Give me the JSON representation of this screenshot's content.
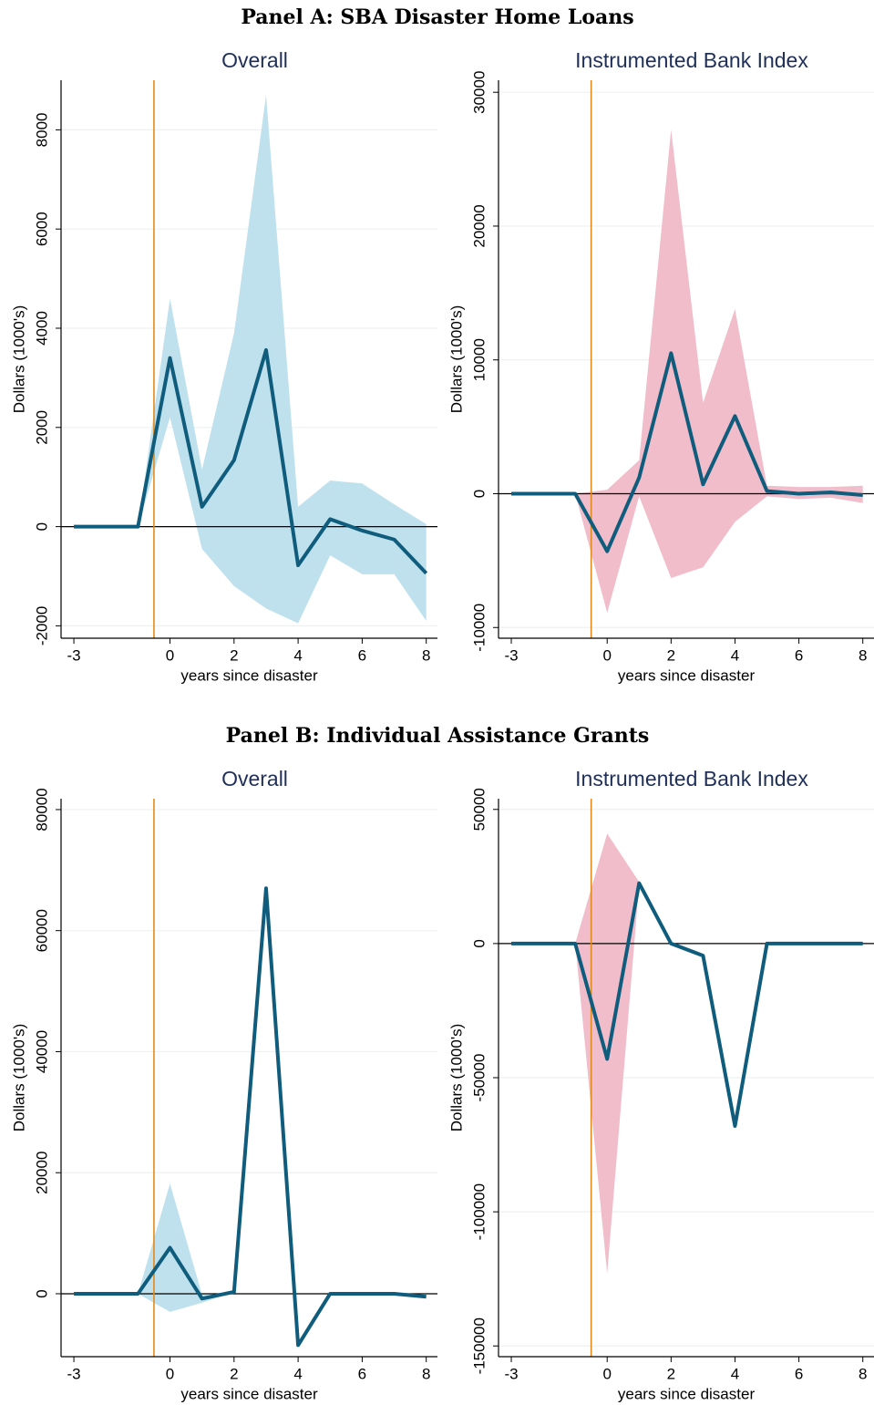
{
  "panel_titles": [
    "Panel A: SBA Disaster Home Loans",
    "Panel B: Individual Assistance Grants"
  ],
  "chart_data": [
    {
      "type": "line",
      "title": "Overall",
      "xlabel": "years since disaster",
      "ylabel": "Dollars (1000's)",
      "x": [
        -3,
        -2,
        -1,
        0,
        1,
        2,
        3,
        4,
        5,
        6,
        7,
        8
      ],
      "series": [
        {
          "color": "#0f5c7c",
          "values": [
            0,
            0,
            0,
            3400,
            400,
            1340,
            3560,
            -780,
            150,
            -80,
            -260,
            -940
          ]
        }
      ],
      "band": {
        "color": "#bfe1ed",
        "upper": [
          0,
          0,
          0,
          4600,
          1150,
          3900,
          8700,
          400,
          930,
          870,
          450,
          50
        ],
        "lower": [
          0,
          0,
          0,
          2200,
          -450,
          -1200,
          -1650,
          -1950,
          -580,
          -960,
          -960,
          -1900
        ]
      },
      "vline": -0.5,
      "vline_color": "#e08a1e",
      "hline": 0,
      "xlim": [
        -3.4,
        8.35
      ],
      "xticks": [
        -3,
        0,
        2,
        4,
        6,
        8
      ],
      "ylim": [
        -2250,
        9000
      ],
      "yticks": [
        -2000,
        0,
        2000,
        4000,
        6000,
        8000
      ],
      "grid": true
    },
    {
      "type": "line",
      "title": "Instrumented Bank Index",
      "xlabel": "years since disaster",
      "ylabel": "Dollars (1000's)",
      "x": [
        -3,
        -2,
        -1,
        0,
        1,
        2,
        3,
        4,
        5,
        6,
        7,
        8
      ],
      "series": [
        {
          "color": "#0f5c7c",
          "values": [
            0,
            0,
            0,
            -4300,
            1200,
            10500,
            700,
            5800,
            200,
            0,
            100,
            -100
          ]
        }
      ],
      "band": {
        "color": "#f1bdcb",
        "upper": [
          0,
          0,
          0,
          300,
          2500,
          27200,
          6800,
          13800,
          600,
          500,
          500,
          600
        ],
        "lower": [
          0,
          0,
          0,
          -8900,
          -200,
          -6300,
          -5500,
          -2100,
          -200,
          -400,
          -300,
          -700
        ]
      },
      "vline": -0.5,
      "vline_color": "#e08a1e",
      "hline": 0,
      "xlim": [
        -3.4,
        8.35
      ],
      "xticks": [
        -3,
        0,
        2,
        4,
        6,
        8
      ],
      "ylim": [
        -10800,
        30900
      ],
      "yticks": [
        -10000,
        0,
        10000,
        20000,
        30000
      ],
      "grid": true
    },
    {
      "type": "line",
      "title": "Overall",
      "xlabel": "years since disaster",
      "ylabel": "Dollars (1000's)",
      "x": [
        -3,
        -2,
        -1,
        0,
        1,
        2,
        3,
        4,
        5,
        6,
        7,
        8
      ],
      "series": [
        {
          "color": "#0f5c7c",
          "values": [
            0,
            0,
            0,
            7600,
            -800,
            300,
            67000,
            -8500,
            0,
            0,
            0,
            -500
          ]
        }
      ],
      "band": {
        "color": "#bfe1ed",
        "upper": [
          0,
          0,
          0,
          18200,
          -100,
          300,
          67000,
          -8500,
          0,
          0,
          0,
          -500
        ],
        "lower": [
          0,
          0,
          0,
          -3000,
          -1500,
          300,
          67000,
          -8500,
          0,
          0,
          0,
          -500
        ]
      },
      "vline": -0.5,
      "vline_color": "#e08a1e",
      "hline": 0,
      "xlim": [
        -3.4,
        8.35
      ],
      "xticks": [
        -3,
        0,
        2,
        4,
        6,
        8
      ],
      "ylim": [
        -10400,
        81800
      ],
      "yticks": [
        0,
        20000,
        40000,
        60000,
        80000
      ],
      "grid": true
    },
    {
      "type": "line",
      "title": "Instrumented Bank Index",
      "xlabel": "years since disaster",
      "ylabel": "Dollars (1000's)",
      "x": [
        -3,
        -2,
        -1,
        0,
        1,
        2,
        3,
        4,
        5,
        6,
        7,
        8
      ],
      "series": [
        {
          "color": "#0f5c7c",
          "values": [
            0,
            0,
            0,
            -43000,
            22500,
            0,
            -4500,
            -68000,
            0,
            0,
            0,
            0
          ]
        }
      ],
      "band": {
        "color": "#f1bdcb",
        "upper": [
          0,
          0,
          0,
          41000,
          23000,
          0,
          -4500,
          -68000,
          0,
          0,
          0,
          0
        ],
        "lower": [
          0,
          0,
          0,
          -123000,
          22000,
          0,
          -4500,
          -68000,
          0,
          0,
          0,
          0
        ]
      },
      "vline": -0.5,
      "vline_color": "#e08a1e",
      "hline": 0,
      "xlim": [
        -3.4,
        8.35
      ],
      "xticks": [
        -3,
        0,
        2,
        4,
        6,
        8
      ],
      "ylim": [
        -154000,
        54000
      ],
      "yticks": [
        -150000,
        -100000,
        -50000,
        0,
        50000
      ],
      "grid": true
    }
  ]
}
